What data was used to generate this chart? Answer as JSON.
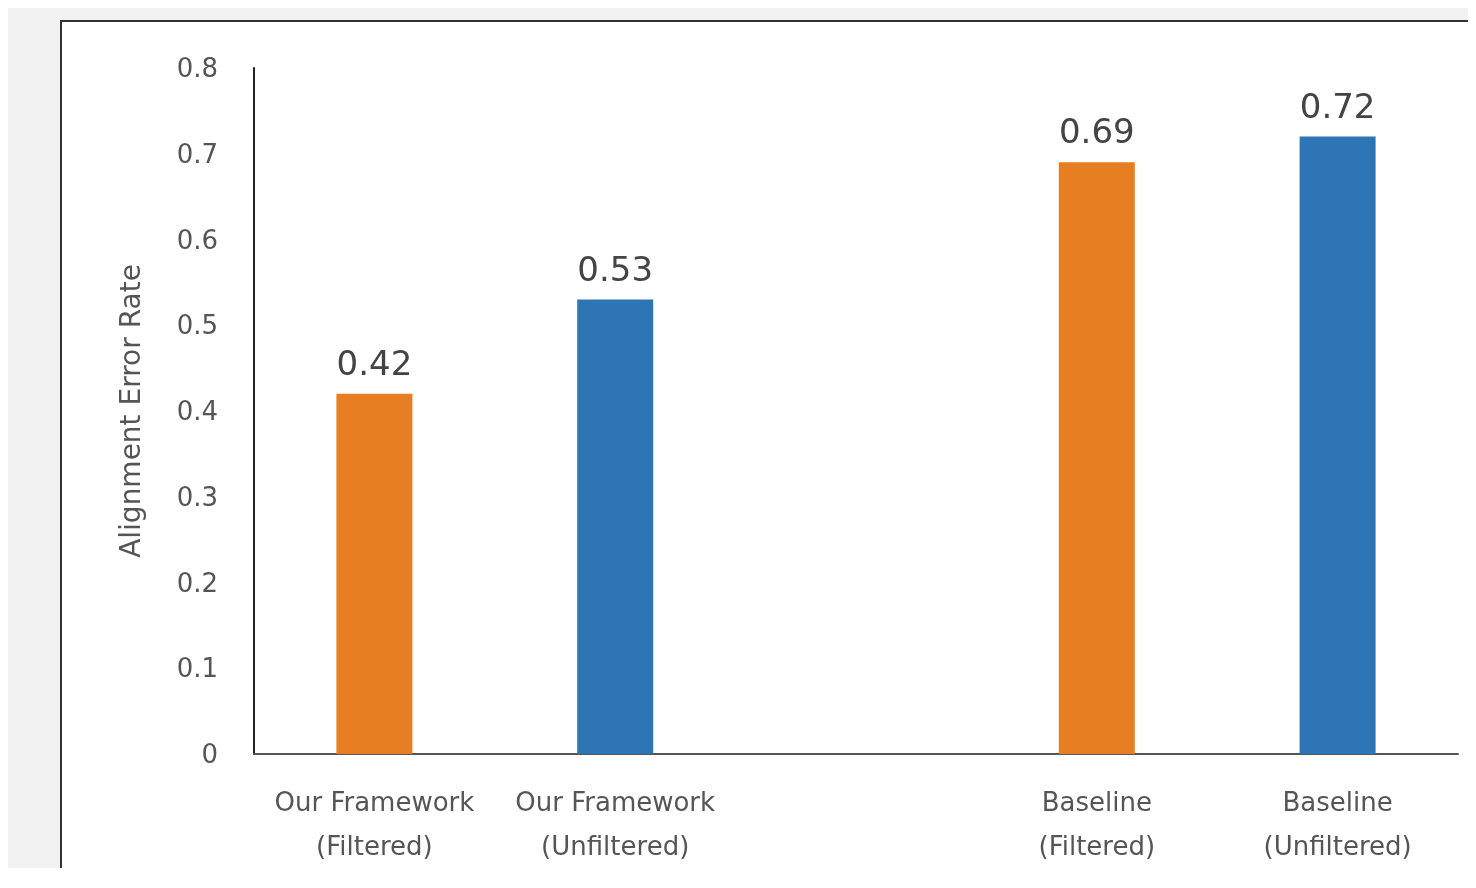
{
  "chart_data": {
    "type": "bar",
    "ylabel": "Alignment Error Rate",
    "categories": [
      "Our Framework\n(Filtered)",
      "Our Framework\n(Unfiltered)",
      null,
      "Baseline\n(Filtered)",
      "Baseline\n(Unfiltered)"
    ],
    "values": [
      0.42,
      0.53,
      null,
      0.69,
      0.72
    ],
    "colors": [
      "#e87e22",
      "#2e75b6",
      null,
      "#e87e22",
      "#2e75b6"
    ],
    "ylim": [
      0,
      0.8
    ],
    "yticks": [
      0,
      0.1,
      0.2,
      0.3,
      0.4,
      0.5,
      0.6,
      0.7,
      0.8
    ],
    "data_labels": true,
    "grid": false
  }
}
